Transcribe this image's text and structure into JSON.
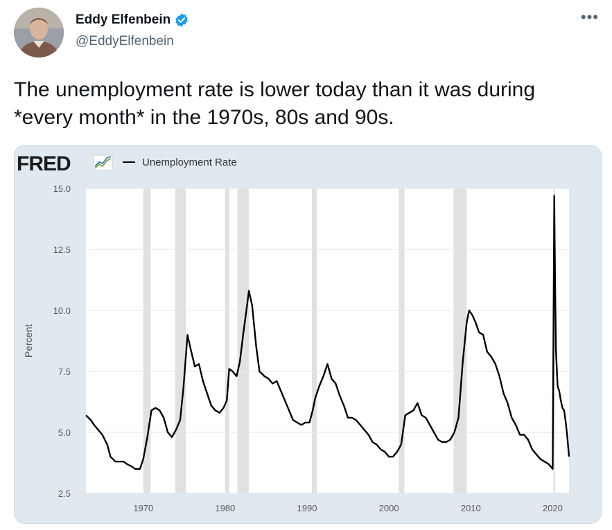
{
  "tweet": {
    "author": {
      "display_name": "Eddy Elfenbein",
      "handle": "@EddyElfenbein",
      "verified": true,
      "avatar_icon": "user-avatar"
    },
    "more_icon": "more-horizontal-icon",
    "text": "The unemployment rate is lower today than it was during *every month* in the 1970s, 80s and 90s."
  },
  "colors": {
    "verified_blue": "#1d9bf0",
    "media_background": "#e1e9f0",
    "plot_background": "#ffffff",
    "recession_shading": "#e1e1e1",
    "line": "#000000"
  },
  "chart_data": {
    "type": "line",
    "brand": "FRED",
    "title": "",
    "legend": [
      "Unemployment Rate"
    ],
    "legend_placement": "top-left",
    "xlabel": "",
    "ylabel": "Percent",
    "xlim": [
      1963,
      2022
    ],
    "ylim": [
      2.5,
      15.0
    ],
    "x_ticks": [
      "1970",
      "1980",
      "1990",
      "2000",
      "2010",
      "2020"
    ],
    "y_ticks": [
      "2.5",
      "5.0",
      "7.5",
      "10.0",
      "12.5",
      "15.0"
    ],
    "grid": "horizontal",
    "recessions": [
      [
        1970.0,
        1970.9
      ],
      [
        1973.9,
        1975.2
      ],
      [
        1980.0,
        1980.5
      ],
      [
        1981.5,
        1982.9
      ],
      [
        1990.6,
        1991.2
      ],
      [
        2001.2,
        2001.9
      ],
      [
        2007.9,
        2009.5
      ],
      [
        2020.1,
        2020.3
      ]
    ],
    "series": [
      {
        "name": "Unemployment Rate",
        "x": [
          1963.0,
          1963.6,
          1964.0,
          1964.5,
          1965.0,
          1965.6,
          1966.0,
          1966.6,
          1967.0,
          1967.6,
          1968.0,
          1968.6,
          1969.0,
          1969.6,
          1970.0,
          1970.5,
          1971.0,
          1971.5,
          1972.0,
          1972.5,
          1973.0,
          1973.5,
          1974.0,
          1974.5,
          1974.9,
          1975.2,
          1975.4,
          1975.8,
          1976.3,
          1976.8,
          1977.3,
          1977.8,
          1978.3,
          1978.8,
          1979.3,
          1979.8,
          1980.2,
          1980.5,
          1980.9,
          1981.4,
          1981.8,
          1982.2,
          1982.6,
          1982.9,
          1983.3,
          1983.8,
          1984.2,
          1984.8,
          1985.3,
          1985.8,
          1986.3,
          1986.8,
          1987.3,
          1987.8,
          1988.3,
          1988.8,
          1989.3,
          1989.8,
          1990.3,
          1990.7,
          1991.0,
          1991.5,
          1992.0,
          1992.5,
          1993.0,
          1993.5,
          1994.0,
          1994.5,
          1995.0,
          1995.5,
          1996.0,
          1996.5,
          1997.0,
          1997.5,
          1998.0,
          1998.5,
          1999.0,
          1999.5,
          2000.0,
          2000.5,
          2001.0,
          2001.5,
          2002.0,
          2002.5,
          2003.0,
          2003.5,
          2004.0,
          2004.5,
          2005.0,
          2005.5,
          2006.0,
          2006.5,
          2007.0,
          2007.5,
          2008.0,
          2008.5,
          2009.0,
          2009.5,
          2009.8,
          2010.2,
          2010.6,
          2011.0,
          2011.5,
          2012.0,
          2012.5,
          2013.0,
          2013.5,
          2014.0,
          2014.5,
          2015.0,
          2015.5,
          2016.0,
          2016.5,
          2017.0,
          2017.5,
          2018.0,
          2018.5,
          2019.0,
          2019.5,
          2020.0,
          2020.2,
          2020.3,
          2020.4,
          2020.6,
          2020.8,
          2021.0,
          2021.2,
          2021.4,
          2021.6,
          2021.8,
          2022.0
        ],
        "values": [
          5.7,
          5.5,
          5.3,
          5.1,
          4.9,
          4.5,
          4.0,
          3.8,
          3.8,
          3.8,
          3.7,
          3.6,
          3.5,
          3.5,
          3.9,
          4.8,
          5.9,
          6.0,
          5.9,
          5.6,
          5.0,
          4.8,
          5.1,
          5.5,
          6.8,
          8.1,
          9.0,
          8.4,
          7.7,
          7.8,
          7.1,
          6.6,
          6.1,
          5.9,
          5.8,
          6.0,
          6.3,
          7.6,
          7.5,
          7.3,
          7.9,
          9.0,
          10.0,
          10.8,
          10.2,
          8.5,
          7.5,
          7.3,
          7.2,
          7.0,
          7.1,
          6.7,
          6.3,
          5.9,
          5.5,
          5.4,
          5.3,
          5.4,
          5.4,
          5.9,
          6.4,
          6.9,
          7.3,
          7.8,
          7.2,
          7.0,
          6.5,
          6.1,
          5.6,
          5.6,
          5.5,
          5.3,
          5.1,
          4.9,
          4.6,
          4.5,
          4.3,
          4.2,
          4.0,
          4.0,
          4.2,
          4.5,
          5.7,
          5.8,
          5.9,
          6.2,
          5.7,
          5.6,
          5.3,
          5.0,
          4.7,
          4.6,
          4.6,
          4.7,
          5.0,
          5.6,
          7.8,
          9.5,
          10.0,
          9.8,
          9.5,
          9.1,
          9.0,
          8.3,
          8.1,
          7.8,
          7.3,
          6.6,
          6.2,
          5.6,
          5.3,
          4.9,
          4.9,
          4.7,
          4.3,
          4.1,
          3.9,
          3.8,
          3.7,
          3.5,
          14.7,
          11.1,
          8.4,
          6.9,
          6.7,
          6.3,
          6.0,
          5.9,
          5.4,
          4.8,
          4.0
        ]
      }
    ]
  }
}
